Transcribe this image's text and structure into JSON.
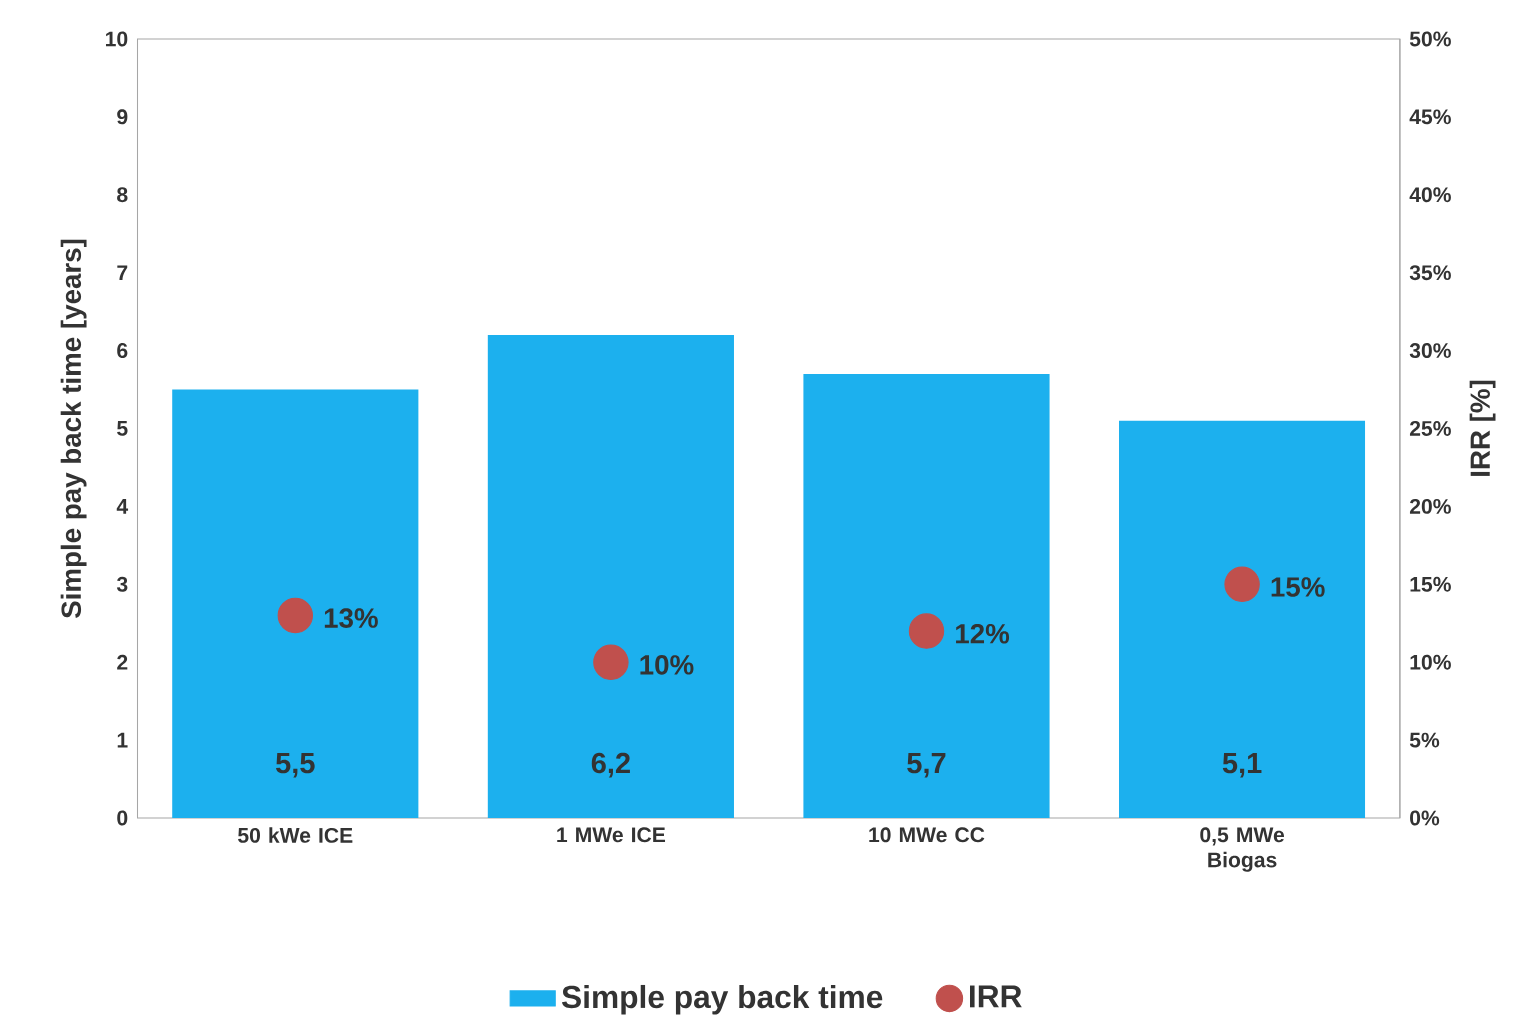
{
  "chart_data": {
    "type": "bar",
    "categories": [
      "50 kWe ICE",
      "1 MWe ICE",
      "10 MWe CC",
      "0,5 MWe Biogas"
    ],
    "series": [
      {
        "name": "Simple pay back time",
        "color": "#1cb0ee",
        "values": [
          5.5,
          6.2,
          5.7,
          5.1
        ],
        "value_labels": [
          "5,5",
          "6,2",
          "5,7",
          "5,1"
        ]
      },
      {
        "name": "IRR",
        "type": "scatter",
        "axis": "y2",
        "color": "#c0504d",
        "values": [
          13,
          10,
          12,
          15
        ],
        "value_labels": [
          "13%",
          "10%",
          "12%",
          "15%"
        ]
      }
    ],
    "ylabel": "Simple pay back time  [years]",
    "y2label": "IRR [%]",
    "ylim": [
      0,
      10
    ],
    "yticks": [
      0,
      1,
      2,
      3,
      4,
      5,
      6,
      7,
      8,
      9,
      10
    ],
    "y2lim": [
      0,
      50
    ],
    "y2ticks": [
      {
        "value": 0,
        "label": "0%"
      },
      {
        "value": 5,
        "label": "5%"
      },
      {
        "value": 10,
        "label": "10%"
      },
      {
        "value": 15,
        "label": "15%"
      },
      {
        "value": 20,
        "label": "20%"
      },
      {
        "value": 25,
        "label": "25%"
      },
      {
        "value": 30,
        "label": "30%"
      },
      {
        "value": 35,
        "label": "35%"
      },
      {
        "value": 40,
        "label": "40%"
      },
      {
        "value": 45,
        "label": "45%"
      },
      {
        "value": 50,
        "label": "50%"
      }
    ],
    "legend": "bottom"
  }
}
